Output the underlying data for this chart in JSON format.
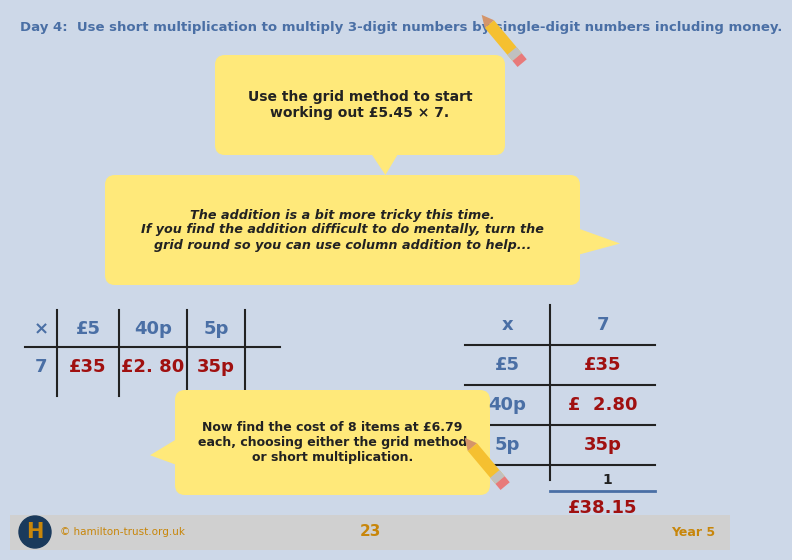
{
  "bg_color": "#cdd8e8",
  "footer_bg": "#d0d0d0",
  "title_text": "Day 4:  Use short multiplication to multiply 3-digit numbers by single-digit numbers including money.",
  "title_color": "#4a6fa5",
  "bubble1_text": "Use the grid method to start\nworking out £5.45 × 7.",
  "bubble2_text": "The addition is a bit more tricky this time.\nIf you find the addition difficult to do mentally, turn the\ngrid round so you can use column addition to help...",
  "bubble_color": "#ffe97a",
  "bubble3_text": "Now find the cost of 8 items at £6.79\neach, choosing either the grid method\nor short multiplication.",
  "grid_headers": [
    "x",
    "7"
  ],
  "grid_row_labels": [
    "£5",
    "40p",
    "5p"
  ],
  "grid_row_values": [
    "£35",
    "£  2.80",
    "35p"
  ],
  "grid_carry": "1",
  "grid_sum": "£38.15",
  "left_row1": [
    "×",
    "£5",
    "40p",
    "5p"
  ],
  "left_row2": [
    "7",
    "£35",
    "£2. 80",
    "35p"
  ],
  "footer_link": "© hamilton-trust.org.uk",
  "footer_page": "23",
  "footer_year": "Year 5",
  "blue_color": "#4a6fa5",
  "red_color": "#a01010",
  "dark_color": "#222222",
  "hamilton_gold": "#c8860a",
  "hamilton_dark": "#1a3a5c"
}
